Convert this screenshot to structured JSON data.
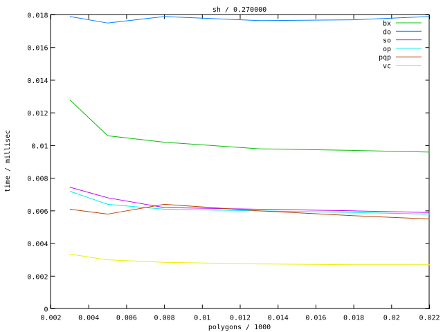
{
  "chart_data": {
    "type": "line",
    "title": "sh / 0.270000",
    "xlabel": "polygons / 1000",
    "ylabel": "time / millisec",
    "xlim": [
      0.002,
      0.022
    ],
    "ylim": [
      0,
      0.018
    ],
    "xticks": [
      "0.002",
      "0.004",
      "0.006",
      "0.008",
      "0.01",
      "0.012",
      "0.014",
      "0.016",
      "0.018",
      "0.02",
      "0.022"
    ],
    "yticks": [
      "0",
      "0.002",
      "0.004",
      "0.006",
      "0.008",
      "0.01",
      "0.012",
      "0.014",
      "0.016",
      "0.018"
    ],
    "grid": false,
    "legend_position": "top-right",
    "x": [
      0.003,
      0.005,
      0.008,
      0.013,
      0.018,
      0.022
    ],
    "series": [
      {
        "name": "bx",
        "color": "#00c000",
        "values": [
          0.0128,
          0.0106,
          0.0102,
          0.0098,
          0.0097,
          0.0096
        ]
      },
      {
        "name": "do",
        "color": "#0080ff",
        "values": [
          0.0179,
          0.0175,
          0.0179,
          0.01765,
          0.0177,
          0.0179
        ]
      },
      {
        "name": "so",
        "color": "#c000ff",
        "values": [
          0.00745,
          0.0068,
          0.0062,
          0.0061,
          0.006,
          0.0059
        ]
      },
      {
        "name": "op",
        "color": "#00eeee",
        "values": [
          0.0072,
          0.0064,
          0.0061,
          0.006,
          0.0059,
          0.0058
        ]
      },
      {
        "name": "pqp",
        "color": "#c04000",
        "values": [
          0.0061,
          0.0058,
          0.0064,
          0.006,
          0.0057,
          0.0055
        ]
      },
      {
        "name": "vc",
        "color": "#eeee00",
        "values": [
          0.00335,
          0.003,
          0.00285,
          0.00275,
          0.0027,
          0.0027
        ]
      }
    ]
  }
}
